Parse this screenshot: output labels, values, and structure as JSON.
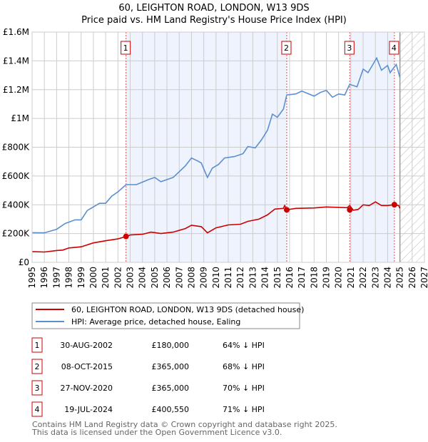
{
  "chart_data": {
    "type": "line",
    "title": "60, LEIGHTON ROAD, LONDON, W13 9DS",
    "subtitle": "Price paid vs. HM Land Registry's House Price Index (HPI)",
    "xlim": [
      1995,
      2027
    ],
    "ylim": [
      0,
      1600000
    ],
    "x_ticks": [
      "1995",
      "1996",
      "1997",
      "1998",
      "1999",
      "2000",
      "2001",
      "2002",
      "2003",
      "2004",
      "2005",
      "2006",
      "2007",
      "2008",
      "2009",
      "2010",
      "2011",
      "2012",
      "2013",
      "2014",
      "2015",
      "2016",
      "2017",
      "2018",
      "2019",
      "2020",
      "2021",
      "2022",
      "2023",
      "2024",
      "2025",
      "2026",
      "2027"
    ],
    "y_ticks": [
      {
        "value": 0,
        "label": "£0"
      },
      {
        "value": 200000,
        "label": "£200K"
      },
      {
        "value": 400000,
        "label": "£400K"
      },
      {
        "value": 600000,
        "label": "£600K"
      },
      {
        "value": 800000,
        "label": "£800K"
      },
      {
        "value": 1000000,
        "label": "£1M"
      },
      {
        "value": 1200000,
        "label": "£1.2M"
      },
      {
        "value": 1400000,
        "label": "£1.4M"
      },
      {
        "value": 1600000,
        "label": "£1.6M"
      }
    ],
    "grid": true,
    "forecast_hatch_from": 2025.0,
    "series": [
      {
        "name": "60, LEIGHTON ROAD, LONDON, W13 9DS (detached house)",
        "color": "#cc0000",
        "x": [
          1995,
          1996,
          1997,
          1997.5,
          1998,
          1999,
          2000,
          2001,
          2002,
          2002.66,
          2003,
          2004,
          2004.7,
          2005.5,
          2006.5,
          2007.5,
          2008,
          2008.8,
          2009.3,
          2010,
          2011,
          2012,
          2012.6,
          2013.5,
          2014.2,
          2014.8,
          2015.5,
          2015.6,
          2015.77,
          2016.5,
          2018,
          2019,
          2020.7,
          2020.9,
          2021.2,
          2021.6,
          2022,
          2022.5,
          2023,
          2023.5,
          2024,
          2024.55,
          2024.9,
          2025
        ],
        "y": [
          75000,
          72000,
          82000,
          85000,
          100000,
          108000,
          135000,
          150000,
          163000,
          180000,
          190000,
          195000,
          210000,
          200000,
          210000,
          235000,
          258000,
          248000,
          205000,
          240000,
          260000,
          265000,
          285000,
          300000,
          330000,
          370000,
          375000,
          395000,
          365000,
          375000,
          378000,
          385000,
          380000,
          395000,
          362000,
          368000,
          400000,
          395000,
          420000,
          395000,
          395000,
          400550,
          395000,
          375000
        ]
      },
      {
        "name": "HPI: Average price, detached house, Ealing",
        "color": "#5b8fd0",
        "x": [
          1995,
          1996,
          1997,
          1997.7,
          1998.5,
          1999,
          1999.5,
          2000.5,
          2001,
          2001.5,
          2002,
          2002.66,
          2003.5,
          2004.5,
          2005,
          2005.5,
          2006,
          2006.5,
          2007,
          2007.5,
          2008,
          2008.5,
          2008.8,
          2009.3,
          2009.7,
          2010.2,
          2010.7,
          2011.5,
          2012.2,
          2012.6,
          2013.2,
          2013.7,
          2014.2,
          2014.6,
          2015,
          2015.5,
          2015.77,
          2016.5,
          2017,
          2018,
          2018.5,
          2019,
          2019.5,
          2020,
          2020.5,
          2020.9,
          2021.5,
          2022,
          2022.4,
          2022.8,
          2023.1,
          2023.5,
          2024,
          2024.2,
          2024.7,
          2025
        ],
        "y": [
          206000,
          205000,
          230000,
          270000,
          295000,
          295000,
          360000,
          410000,
          410000,
          460000,
          490000,
          540000,
          540000,
          575000,
          590000,
          560000,
          575000,
          590000,
          630000,
          670000,
          725000,
          705000,
          690000,
          590000,
          655000,
          680000,
          725000,
          735000,
          755000,
          805000,
          795000,
          850000,
          918000,
          1030000,
          1008000,
          1065000,
          1163000,
          1170000,
          1190000,
          1155000,
          1180000,
          1195000,
          1147000,
          1170000,
          1163000,
          1237000,
          1220000,
          1343000,
          1318000,
          1375000,
          1420000,
          1335000,
          1368000,
          1318000,
          1375000,
          1285000
        ]
      }
    ],
    "sales": [
      {
        "label": "1",
        "x": 2002.66,
        "y": 180000
      },
      {
        "label": "2",
        "x": 2015.77,
        "y": 365000
      },
      {
        "label": "3",
        "x": 2020.91,
        "y": 365000
      },
      {
        "label": "4",
        "x": 2024.55,
        "y": 400550
      }
    ]
  },
  "legend": {
    "red": "60, LEIGHTON ROAD, LONDON, W13 9DS (detached house)",
    "blue": "HPI: Average price, detached house, Ealing"
  },
  "table": [
    {
      "num": "1",
      "date": "30-AUG-2002",
      "price": "£180,000",
      "hpi": "64% ↓ HPI"
    },
    {
      "num": "2",
      "date": "08-OCT-2015",
      "price": "£365,000",
      "hpi": "68% ↓ HPI"
    },
    {
      "num": "3",
      "date": "27-NOV-2020",
      "price": "£365,000",
      "hpi": "70% ↓ HPI"
    },
    {
      "num": "4",
      "date": "19-JUL-2024",
      "price": "£400,550",
      "hpi": "71% ↓ HPI"
    }
  ],
  "footer": {
    "line1": "Contains HM Land Registry data © Crown copyright and database right 2025.",
    "line2": "This data is licensed under the Open Government Licence v3.0."
  }
}
